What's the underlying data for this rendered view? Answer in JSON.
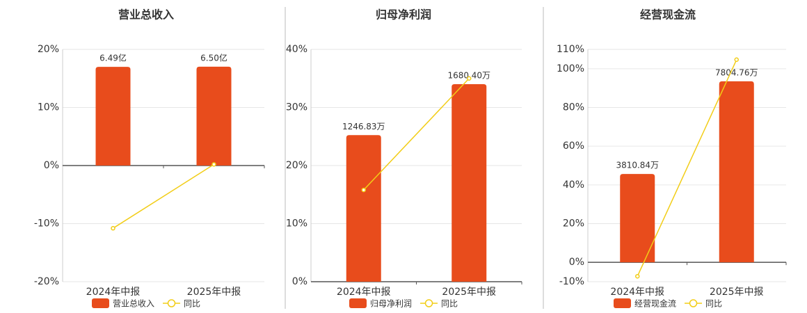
{
  "chart_data": [
    {
      "type": "bar",
      "title": "营业总收入",
      "categories": [
        "2024年中报",
        "2025年中报"
      ],
      "series": [
        {
          "name": "营业总收入",
          "type": "bar",
          "color": "#e84c1c",
          "axis": "y2",
          "values": [
            6.49,
            6.5
          ],
          "value_labels": [
            "6.49亿",
            "6.50亿"
          ]
        },
        {
          "name": "同比",
          "type": "line",
          "color": "#f2cd17",
          "values": [
            -10.8,
            0.2
          ]
        }
      ],
      "ylim": [
        -20,
        20
      ],
      "yticks": [
        {
          "value": -20,
          "label": "-20%"
        },
        {
          "value": -10,
          "label": "-10%"
        },
        {
          "value": 0,
          "label": "0%"
        },
        {
          "value": 10,
          "label": "10%"
        },
        {
          "value": 20,
          "label": "20%"
        }
      ],
      "y2lim": [
        -7.64,
        7.64
      ],
      "grid": true
    },
    {
      "type": "bar",
      "title": "归母净利润",
      "categories": [
        "2024年中报",
        "2025年中报"
      ],
      "series": [
        {
          "name": "归母净利润",
          "type": "bar",
          "color": "#e84c1c",
          "axis": "y2",
          "values": [
            1246.83,
            1680.4
          ],
          "value_labels": [
            "1246.83万",
            "1680.40万"
          ]
        },
        {
          "name": "同比",
          "type": "line",
          "color": "#f2cd17",
          "values": [
            15.8,
            35.0
          ]
        }
      ],
      "ylim": [
        0,
        40
      ],
      "yticks": [
        {
          "value": 0,
          "label": "0%"
        },
        {
          "value": 10,
          "label": "10%"
        },
        {
          "value": 20,
          "label": "20%"
        },
        {
          "value": 30,
          "label": "30%"
        },
        {
          "value": 40,
          "label": "40%"
        }
      ],
      "y2lim": [
        0,
        1976
      ],
      "grid": true
    },
    {
      "type": "bar",
      "title": "经营现金流",
      "categories": [
        "2024年中报",
        "2025年中报"
      ],
      "series": [
        {
          "name": "经营现金流",
          "type": "bar",
          "color": "#e84c1c",
          "axis": "y2",
          "values": [
            3810.84,
            7804.76
          ],
          "value_labels": [
            "3810.84万",
            "7804.76万"
          ]
        },
        {
          "name": "同比",
          "type": "line",
          "color": "#f2cd17",
          "values": [
            -7.2,
            104.7
          ]
        }
      ],
      "ylim": [
        -10,
        110
      ],
      "yticks": [
        {
          "value": -10,
          "label": "-10%"
        },
        {
          "value": 0,
          "label": "0%"
        },
        {
          "value": 20,
          "label": "20%"
        },
        {
          "value": 40,
          "label": "40%"
        },
        {
          "value": 60,
          "label": "60%"
        },
        {
          "value": 80,
          "label": "80%"
        },
        {
          "value": 100,
          "label": "100%"
        },
        {
          "value": 110,
          "label": "110%"
        }
      ],
      "y2lim": [
        -835,
        9182
      ],
      "grid": true
    }
  ]
}
